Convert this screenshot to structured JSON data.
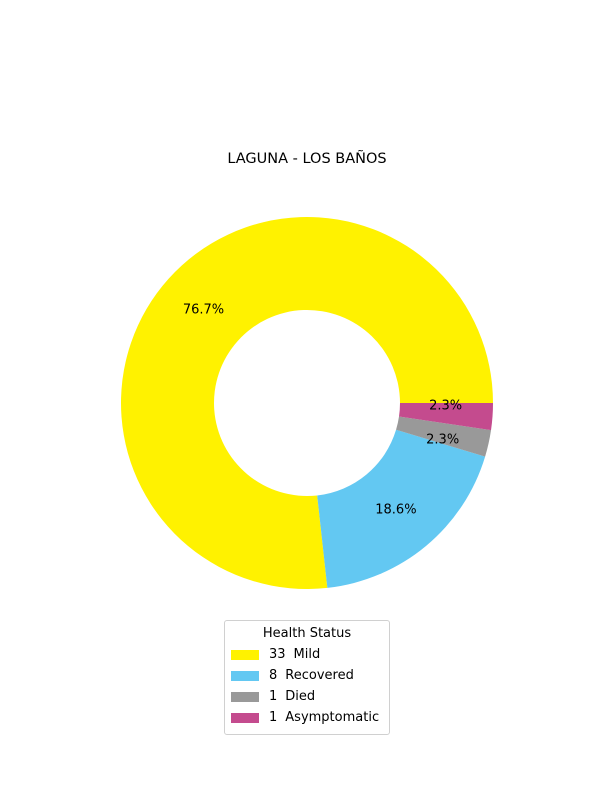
{
  "chart_data": {
    "type": "pie",
    "title": "LAGUNA - LOS BAÑOS",
    "donut": true,
    "start_angle_deg": 0,
    "direction": "counterclockwise",
    "slices": [
      {
        "label": "Mild",
        "value": 33,
        "percent_label": "76.7%",
        "color": "#fff200"
      },
      {
        "label": "Recovered",
        "value": 8,
        "percent_label": "18.6%",
        "color": "#63c8f2"
      },
      {
        "label": "Died",
        "value": 1,
        "percent_label": "2.3%",
        "color": "#999999"
      },
      {
        "label": "Asymptomatic",
        "value": 1,
        "percent_label": "2.3%",
        "color": "#c44b8e"
      }
    ],
    "legend": {
      "title": "Health Status",
      "placement": "bottom-center",
      "entries": [
        {
          "count": "33",
          "label": "Mild"
        },
        {
          "count": "8",
          "label": "Recovered"
        },
        {
          "count": "1",
          "label": "Died"
        },
        {
          "count": "1",
          "label": "Asymptomatic"
        }
      ]
    }
  }
}
